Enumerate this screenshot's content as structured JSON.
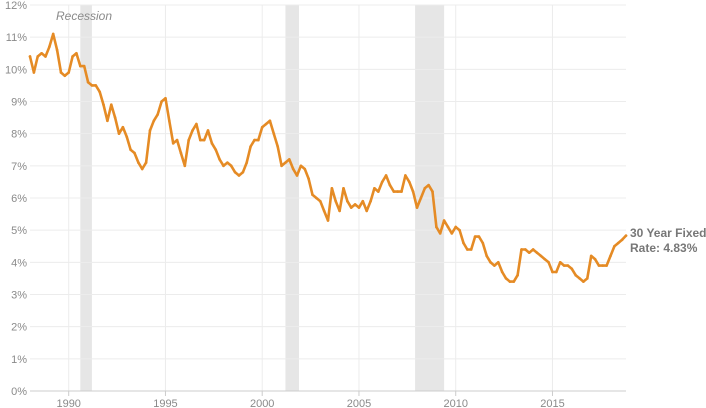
{
  "chart_data": {
    "type": "line",
    "title": "",
    "xlabel": "",
    "ylabel": "",
    "xlim": [
      1988,
      2018.8
    ],
    "ylim": [
      0,
      12
    ],
    "x_ticks": [
      1990,
      1995,
      2000,
      2005,
      2010,
      2015
    ],
    "y_ticks": [
      {
        "value": 0,
        "label": "0%"
      },
      {
        "value": 1,
        "label": "1%"
      },
      {
        "value": 2,
        "label": "2%"
      },
      {
        "value": 3,
        "label": "3%"
      },
      {
        "value": 4,
        "label": "4%"
      },
      {
        "value": 5,
        "label": "5%"
      },
      {
        "value": 6,
        "label": "6%"
      },
      {
        "value": 7,
        "label": "7%"
      },
      {
        "value": 8,
        "label": "8%"
      },
      {
        "value": 9,
        "label": "9%"
      },
      {
        "value": 10,
        "label": "10%"
      },
      {
        "value": 11,
        "label": "11%"
      },
      {
        "value": 12,
        "label": "12%"
      }
    ],
    "grid": true,
    "recession_label": "Recession",
    "recessions": [
      [
        1990.6,
        1991.2
      ],
      [
        2001.2,
        2001.9
      ],
      [
        2007.9,
        2009.4
      ]
    ],
    "end_label_line1": "30 Year Fixed",
    "end_label_line2": "Rate: 4.83%",
    "colors": {
      "line": "#E58B25",
      "recession": "#E6E6E6",
      "grid": "#ECECEC",
      "axis": "#CCCCCC"
    },
    "series": [
      {
        "values": [
          [
            1988.0,
            10.4
          ],
          [
            1988.2,
            9.9
          ],
          [
            1988.4,
            10.4
          ],
          [
            1988.6,
            10.5
          ],
          [
            1988.8,
            10.4
          ],
          [
            1989.0,
            10.7
          ],
          [
            1989.2,
            11.1
          ],
          [
            1989.4,
            10.6
          ],
          [
            1989.6,
            9.9
          ],
          [
            1989.8,
            9.8
          ],
          [
            1990.0,
            9.9
          ],
          [
            1990.2,
            10.4
          ],
          [
            1990.4,
            10.5
          ],
          [
            1990.6,
            10.1
          ],
          [
            1990.8,
            10.1
          ],
          [
            1991.0,
            9.6
          ],
          [
            1991.2,
            9.5
          ],
          [
            1991.4,
            9.5
          ],
          [
            1991.6,
            9.3
          ],
          [
            1991.8,
            8.9
          ],
          [
            1992.0,
            8.4
          ],
          [
            1992.2,
            8.9
          ],
          [
            1992.4,
            8.5
          ],
          [
            1992.6,
            8.0
          ],
          [
            1992.8,
            8.2
          ],
          [
            1993.0,
            7.9
          ],
          [
            1993.2,
            7.5
          ],
          [
            1993.4,
            7.4
          ],
          [
            1993.6,
            7.1
          ],
          [
            1993.8,
            6.9
          ],
          [
            1994.0,
            7.1
          ],
          [
            1994.2,
            8.1
          ],
          [
            1994.4,
            8.4
          ],
          [
            1994.6,
            8.6
          ],
          [
            1994.8,
            9.0
          ],
          [
            1995.0,
            9.1
          ],
          [
            1995.2,
            8.4
          ],
          [
            1995.4,
            7.7
          ],
          [
            1995.6,
            7.8
          ],
          [
            1995.8,
            7.4
          ],
          [
            1996.0,
            7.0
          ],
          [
            1996.2,
            7.8
          ],
          [
            1996.4,
            8.1
          ],
          [
            1996.6,
            8.3
          ],
          [
            1996.8,
            7.8
          ],
          [
            1997.0,
            7.8
          ],
          [
            1997.2,
            8.1
          ],
          [
            1997.4,
            7.7
          ],
          [
            1997.6,
            7.5
          ],
          [
            1997.8,
            7.2
          ],
          [
            1998.0,
            7.0
          ],
          [
            1998.2,
            7.1
          ],
          [
            1998.4,
            7.0
          ],
          [
            1998.6,
            6.8
          ],
          [
            1998.8,
            6.7
          ],
          [
            1999.0,
            6.8
          ],
          [
            1999.2,
            7.1
          ],
          [
            1999.4,
            7.6
          ],
          [
            1999.6,
            7.8
          ],
          [
            1999.8,
            7.8
          ],
          [
            2000.0,
            8.2
          ],
          [
            2000.2,
            8.3
          ],
          [
            2000.4,
            8.4
          ],
          [
            2000.6,
            8.0
          ],
          [
            2000.8,
            7.6
          ],
          [
            2001.0,
            7.0
          ],
          [
            2001.2,
            7.1
          ],
          [
            2001.4,
            7.2
          ],
          [
            2001.6,
            6.9
          ],
          [
            2001.8,
            6.7
          ],
          [
            2002.0,
            7.0
          ],
          [
            2002.2,
            6.9
          ],
          [
            2002.4,
            6.6
          ],
          [
            2002.6,
            6.1
          ],
          [
            2002.8,
            6.0
          ],
          [
            2003.0,
            5.9
          ],
          [
            2003.2,
            5.6
          ],
          [
            2003.4,
            5.3
          ],
          [
            2003.6,
            6.3
          ],
          [
            2003.8,
            5.9
          ],
          [
            2004.0,
            5.6
          ],
          [
            2004.2,
            6.3
          ],
          [
            2004.4,
            5.9
          ],
          [
            2004.6,
            5.7
          ],
          [
            2004.8,
            5.8
          ],
          [
            2005.0,
            5.7
          ],
          [
            2005.2,
            5.9
          ],
          [
            2005.4,
            5.6
          ],
          [
            2005.6,
            5.9
          ],
          [
            2005.8,
            6.3
          ],
          [
            2006.0,
            6.2
          ],
          [
            2006.2,
            6.5
          ],
          [
            2006.4,
            6.7
          ],
          [
            2006.6,
            6.4
          ],
          [
            2006.8,
            6.2
          ],
          [
            2007.0,
            6.2
          ],
          [
            2007.2,
            6.2
          ],
          [
            2007.4,
            6.7
          ],
          [
            2007.6,
            6.5
          ],
          [
            2007.8,
            6.2
          ],
          [
            2008.0,
            5.7
          ],
          [
            2008.2,
            6.0
          ],
          [
            2008.4,
            6.3
          ],
          [
            2008.6,
            6.4
          ],
          [
            2008.8,
            6.2
          ],
          [
            2009.0,
            5.1
          ],
          [
            2009.2,
            4.9
          ],
          [
            2009.4,
            5.3
          ],
          [
            2009.6,
            5.1
          ],
          [
            2009.8,
            4.9
          ],
          [
            2010.0,
            5.1
          ],
          [
            2010.2,
            5.0
          ],
          [
            2010.4,
            4.6
          ],
          [
            2010.6,
            4.4
          ],
          [
            2010.8,
            4.4
          ],
          [
            2011.0,
            4.8
          ],
          [
            2011.2,
            4.8
          ],
          [
            2011.4,
            4.6
          ],
          [
            2011.6,
            4.2
          ],
          [
            2011.8,
            4.0
          ],
          [
            2012.0,
            3.9
          ],
          [
            2012.2,
            4.0
          ],
          [
            2012.4,
            3.7
          ],
          [
            2012.6,
            3.5
          ],
          [
            2012.8,
            3.4
          ],
          [
            2013.0,
            3.4
          ],
          [
            2013.2,
            3.6
          ],
          [
            2013.4,
            4.4
          ],
          [
            2013.6,
            4.4
          ],
          [
            2013.8,
            4.3
          ],
          [
            2014.0,
            4.4
          ],
          [
            2014.2,
            4.3
          ],
          [
            2014.4,
            4.2
          ],
          [
            2014.6,
            4.1
          ],
          [
            2014.8,
            4.0
          ],
          [
            2015.0,
            3.7
          ],
          [
            2015.2,
            3.7
          ],
          [
            2015.4,
            4.0
          ],
          [
            2015.6,
            3.9
          ],
          [
            2015.8,
            3.9
          ],
          [
            2016.0,
            3.8
          ],
          [
            2016.2,
            3.6
          ],
          [
            2016.4,
            3.5
          ],
          [
            2016.6,
            3.4
          ],
          [
            2016.8,
            3.5
          ],
          [
            2017.0,
            4.2
          ],
          [
            2017.2,
            4.1
          ],
          [
            2017.4,
            3.9
          ],
          [
            2017.6,
            3.9
          ],
          [
            2017.8,
            3.9
          ],
          [
            2018.0,
            4.2
          ],
          [
            2018.2,
            4.5
          ],
          [
            2018.4,
            4.6
          ],
          [
            2018.6,
            4.7
          ],
          [
            2018.8,
            4.83
          ]
        ]
      }
    ]
  }
}
